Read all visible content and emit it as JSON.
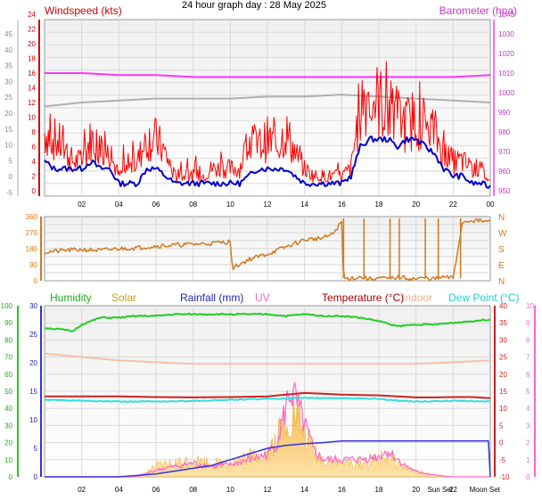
{
  "title": "24 hour graph day : 28 May 2025",
  "colors": {
    "windspeed": "#ff0000",
    "gust": "#ff0000",
    "wind_avg": "#0000cc",
    "barometer": "#ff33ff",
    "baro_grey": "#b0b0b0",
    "direction": "#d2781e",
    "humidity": "#22cc22",
    "solar": "#f0c040",
    "rainfall": "#3333dd",
    "uv": "#ff66cc",
    "temperature": "#cc2222",
    "indoor": "#f5c0a8",
    "dewpoint": "#33dddd"
  },
  "chart_data": [
    {
      "type": "line",
      "panel": "wind-barometer",
      "left_axis_label": "Windspeed (kts)",
      "right_axis_label": "Barometer (hpa)",
      "x_ticks": [
        "02",
        "04",
        "06",
        "08",
        "10",
        "12",
        "14",
        "16",
        "18",
        "20",
        "22",
        "00"
      ],
      "x_range": [
        0,
        24
      ],
      "outer_left_ticks": [
        "45",
        "40",
        "35",
        "30",
        "25",
        "20",
        "15",
        "10",
        "5",
        "0",
        "-5"
      ],
      "left_ticks": [
        "24",
        "22",
        "20",
        "18",
        "16",
        "14",
        "12",
        "10",
        "8",
        "6",
        "4",
        "2",
        "0"
      ],
      "left_range": [
        0,
        24
      ],
      "right_ticks": [
        "1040",
        "1030",
        "1020",
        "1010",
        "1000",
        "990",
        "980",
        "970",
        "960",
        "950"
      ],
      "right_range": [
        950,
        1040
      ],
      "series": [
        {
          "key": "gust",
          "x": [
            0,
            0.5,
            1,
            1.5,
            2,
            2.5,
            3,
            3.5,
            4,
            4.5,
            5,
            5.5,
            6,
            6.5,
            7,
            7.5,
            8,
            8.5,
            9,
            9.5,
            10,
            10.5,
            11,
            11.5,
            12,
            12.5,
            13,
            13.5,
            14,
            14.5,
            15,
            15.5,
            16,
            16.5,
            17,
            17.5,
            18,
            18.5,
            19,
            19.5,
            20,
            20.5,
            21,
            21.5,
            22,
            22.5,
            23,
            23.5,
            24
          ],
          "values": [
            8,
            7,
            6,
            4,
            4,
            7,
            6,
            5,
            2,
            3,
            4,
            7,
            7,
            5,
            2,
            2,
            2,
            2,
            3,
            3,
            3,
            3,
            7,
            6,
            7,
            6,
            8,
            5,
            3,
            2,
            2,
            2,
            2,
            3,
            12,
            13,
            12,
            11,
            10,
            9,
            10,
            9,
            8,
            5,
            4,
            4,
            3,
            3,
            1
          ]
        },
        {
          "key": "wind_avg",
          "x": [
            0,
            0.5,
            1,
            1.5,
            2,
            2.5,
            3,
            3.5,
            4,
            4.5,
            5,
            5.5,
            6,
            6.5,
            7,
            7.5,
            8,
            8.5,
            9,
            9.5,
            10,
            10.5,
            11,
            11.5,
            12,
            12.5,
            13,
            13.5,
            14,
            14.5,
            15,
            15.5,
            16,
            16.5,
            17,
            17.5,
            18,
            18.5,
            19,
            19.5,
            20,
            20.5,
            21,
            21.5,
            22,
            22.5,
            23,
            23.5,
            24
          ],
          "values": [
            4,
            3,
            3,
            3,
            3,
            4,
            3,
            3,
            1,
            1,
            1,
            3,
            3,
            2,
            1,
            1,
            1,
            1,
            1,
            1,
            1,
            1,
            2,
            3,
            3,
            3,
            3,
            2,
            1,
            1,
            1,
            1,
            1,
            2,
            6,
            7,
            7,
            7,
            6,
            7,
            7,
            6,
            5,
            3,
            2,
            2,
            1,
            1,
            0.5
          ]
        },
        {
          "key": "barometer",
          "x": [
            0,
            2,
            4,
            6,
            8,
            10,
            12,
            14,
            16,
            18,
            20,
            22,
            24
          ],
          "values": [
            1010,
            1010,
            1009,
            1009,
            1008,
            1008,
            1008,
            1008,
            1008,
            1008,
            1008,
            1008,
            1009
          ]
        },
        {
          "key": "baro_grey",
          "x": [
            0,
            2,
            4,
            6,
            8,
            10,
            12,
            14,
            16,
            18,
            20,
            22,
            24
          ],
          "values": [
            993,
            995,
            996,
            997,
            997,
            997,
            998,
            998,
            999,
            998,
            997,
            996,
            995
          ]
        }
      ]
    },
    {
      "type": "line",
      "panel": "wind-direction",
      "x_range": [
        0,
        24
      ],
      "left_ticks": [
        "360",
        "270",
        "180",
        "90",
        "0"
      ],
      "left_range": [
        0,
        360
      ],
      "right_ticks": [
        "N",
        "W",
        "S",
        "E",
        "N"
      ],
      "series": [
        {
          "key": "direction",
          "x": [
            0,
            1,
            2,
            3,
            4,
            5,
            6,
            7,
            8,
            9,
            10,
            10.1,
            11,
            12,
            13,
            14,
            15,
            15.5,
            16,
            16.1,
            17,
            17.5,
            18,
            18.5,
            19,
            19.5,
            20,
            20.5,
            21,
            21.5,
            22,
            22.5,
            23,
            23.5,
            24
          ],
          "values": [
            160,
            170,
            175,
            170,
            180,
            185,
            195,
            200,
            205,
            210,
            220,
            70,
            120,
            150,
            190,
            230,
            240,
            260,
            330,
            10,
            20,
            10,
            15,
            10,
            20,
            15,
            10,
            15,
            10,
            20,
            15,
            330,
            340,
            335,
            330
          ]
        }
      ]
    },
    {
      "type": "line",
      "panel": "temperature-humidity",
      "legend": [
        "Humidity",
        "Solar",
        "Rainfall (mm)",
        "UV",
        "Temperature (°C)",
        "Indoor",
        "Dew Point (°C)"
      ],
      "x_ticks": [
        "02",
        "04",
        "06",
        "08",
        "10",
        "12",
        "14",
        "16",
        "18",
        "20",
        "Sun Set",
        "22",
        "Moon Set"
      ],
      "humidity_ticks": [
        "100",
        "90",
        "80",
        "70",
        "60",
        "50",
        "40",
        "30",
        "20",
        "10",
        "0"
      ],
      "rain_ticks": [
        "30",
        "25",
        "20",
        "15",
        "10",
        "5",
        "0"
      ],
      "temp_ticks": [
        "40",
        "35",
        "30",
        "25",
        "20",
        "15",
        "10",
        "5",
        "0",
        "-5",
        "-10"
      ],
      "uv_ticks": [
        "10",
        "9",
        "8",
        "7",
        "6",
        "5",
        "4",
        "3",
        "2",
        "1",
        "0"
      ],
      "series": [
        {
          "key": "humidity",
          "x": [
            0,
            1,
            1.5,
            2,
            3,
            4,
            5,
            6,
            7,
            8,
            9,
            10,
            11,
            12,
            13,
            14,
            15,
            16,
            17,
            18,
            19,
            20,
            21,
            22,
            23,
            24
          ],
          "values": [
            87,
            86,
            85,
            89,
            93,
            93,
            94,
            94,
            95,
            95,
            95,
            95,
            95,
            95,
            94,
            95,
            94,
            94,
            93,
            91,
            88,
            89,
            89,
            90,
            91,
            92
          ]
        },
        {
          "key": "indoor",
          "x": [
            0,
            2,
            4,
            6,
            8,
            10,
            12,
            14,
            16,
            18,
            20,
            22,
            24
          ],
          "values": [
            26,
            25,
            24,
            23.5,
            23,
            23,
            23,
            23,
            23,
            23,
            23,
            23.5,
            24
          ]
        },
        {
          "key": "temperature",
          "x": [
            0,
            2,
            4,
            6,
            8,
            10,
            12,
            13,
            14,
            15,
            16,
            17,
            18,
            19,
            20,
            21,
            22,
            23,
            24
          ],
          "values": [
            13.5,
            13.5,
            13.5,
            13.3,
            13.2,
            13.3,
            13.5,
            14,
            14.5,
            14.3,
            14,
            13.9,
            13.8,
            13.5,
            13.2,
            13.2,
            13.3,
            13.3,
            13
          ]
        },
        {
          "key": "dewpoint",
          "x": [
            0,
            2,
            4,
            6,
            8,
            10,
            12,
            14,
            16,
            18,
            19,
            20,
            22,
            24
          ],
          "values": [
            12.5,
            12.2,
            12,
            12,
            12.2,
            12.5,
            12.8,
            13,
            13,
            12.8,
            12.2,
            12,
            12.2,
            12
          ]
        },
        {
          "key": "rainfall",
          "x": [
            0,
            4,
            6,
            7,
            8,
            9,
            9.5,
            10,
            10.5,
            11,
            12,
            13,
            14,
            15,
            16,
            18,
            20,
            22,
            23.9,
            24
          ],
          "values": [
            0,
            0,
            0.5,
            1,
            1.5,
            2,
            2.5,
            3,
            3.5,
            4,
            5,
            5.5,
            5.8,
            6,
            6.3,
            6.3,
            6.3,
            6.3,
            6.3,
            0
          ]
        },
        {
          "key": "uv",
          "x": [
            0,
            5,
            6,
            7,
            8,
            9,
            10,
            11,
            12,
            12.5,
            13,
            13.2,
            13.5,
            14,
            14.5,
            15,
            16,
            17,
            18,
            18.5,
            19,
            19.5,
            20,
            21,
            22,
            24
          ],
          "values": [
            0,
            0,
            0.4,
            0.6,
            0.8,
            0.6,
            0.7,
            1,
            1.3,
            2,
            4,
            5,
            4.5,
            3,
            1.5,
            1,
            1,
            1,
            1.2,
            1.5,
            1,
            0.6,
            0.3,
            0.1,
            0,
            0
          ]
        },
        {
          "key": "solar",
          "x": [
            0,
            5,
            6,
            7,
            8,
            9,
            10,
            11,
            12,
            12.5,
            13,
            13.5,
            14,
            14.5,
            15,
            16,
            17,
            18,
            18.5,
            19,
            20,
            21,
            22,
            24
          ],
          "values": [
            0,
            0,
            0.6,
            0.8,
            1,
            0.8,
            0.8,
            1.2,
            1.5,
            2.2,
            3.5,
            3.8,
            2.5,
            1.5,
            1,
            0.8,
            0.8,
            1,
            1.3,
            0.8,
            0.3,
            0.1,
            0,
            0
          ]
        }
      ]
    }
  ]
}
